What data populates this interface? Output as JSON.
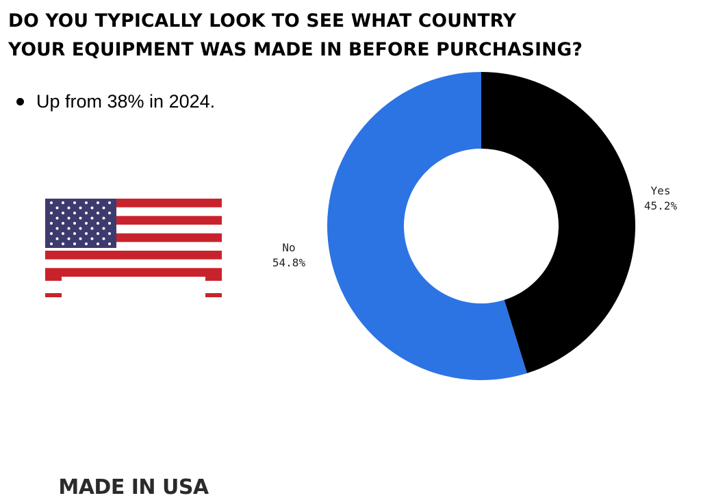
{
  "title": {
    "line1": "DO YOU TYPICALLY LOOK TO SEE WHAT COUNTRY",
    "line2": "YOUR EQUIPMENT WAS MADE IN BEFORE PURCHASING?"
  },
  "bullet_text": "Up from 38% in 2024.",
  "badge": {
    "text": "MADE IN USA"
  },
  "colors": {
    "yes": "#000000",
    "no": "#2c74e3",
    "flag_red": "#c8232c",
    "flag_blue": "#3d3b6e"
  },
  "chart_data": {
    "type": "pie",
    "donut": true,
    "labels": [
      "Yes",
      "No"
    ],
    "values": [
      45.2,
      54.8
    ],
    "value_labels": [
      "45.2%",
      "54.8%"
    ],
    "colors": [
      "#000000",
      "#2c74e3"
    ],
    "title": "DO YOU TYPICALLY LOOK TO SEE WHAT COUNTRY YOUR EQUIPMENT WAS MADE IN BEFORE PURCHASING?"
  }
}
